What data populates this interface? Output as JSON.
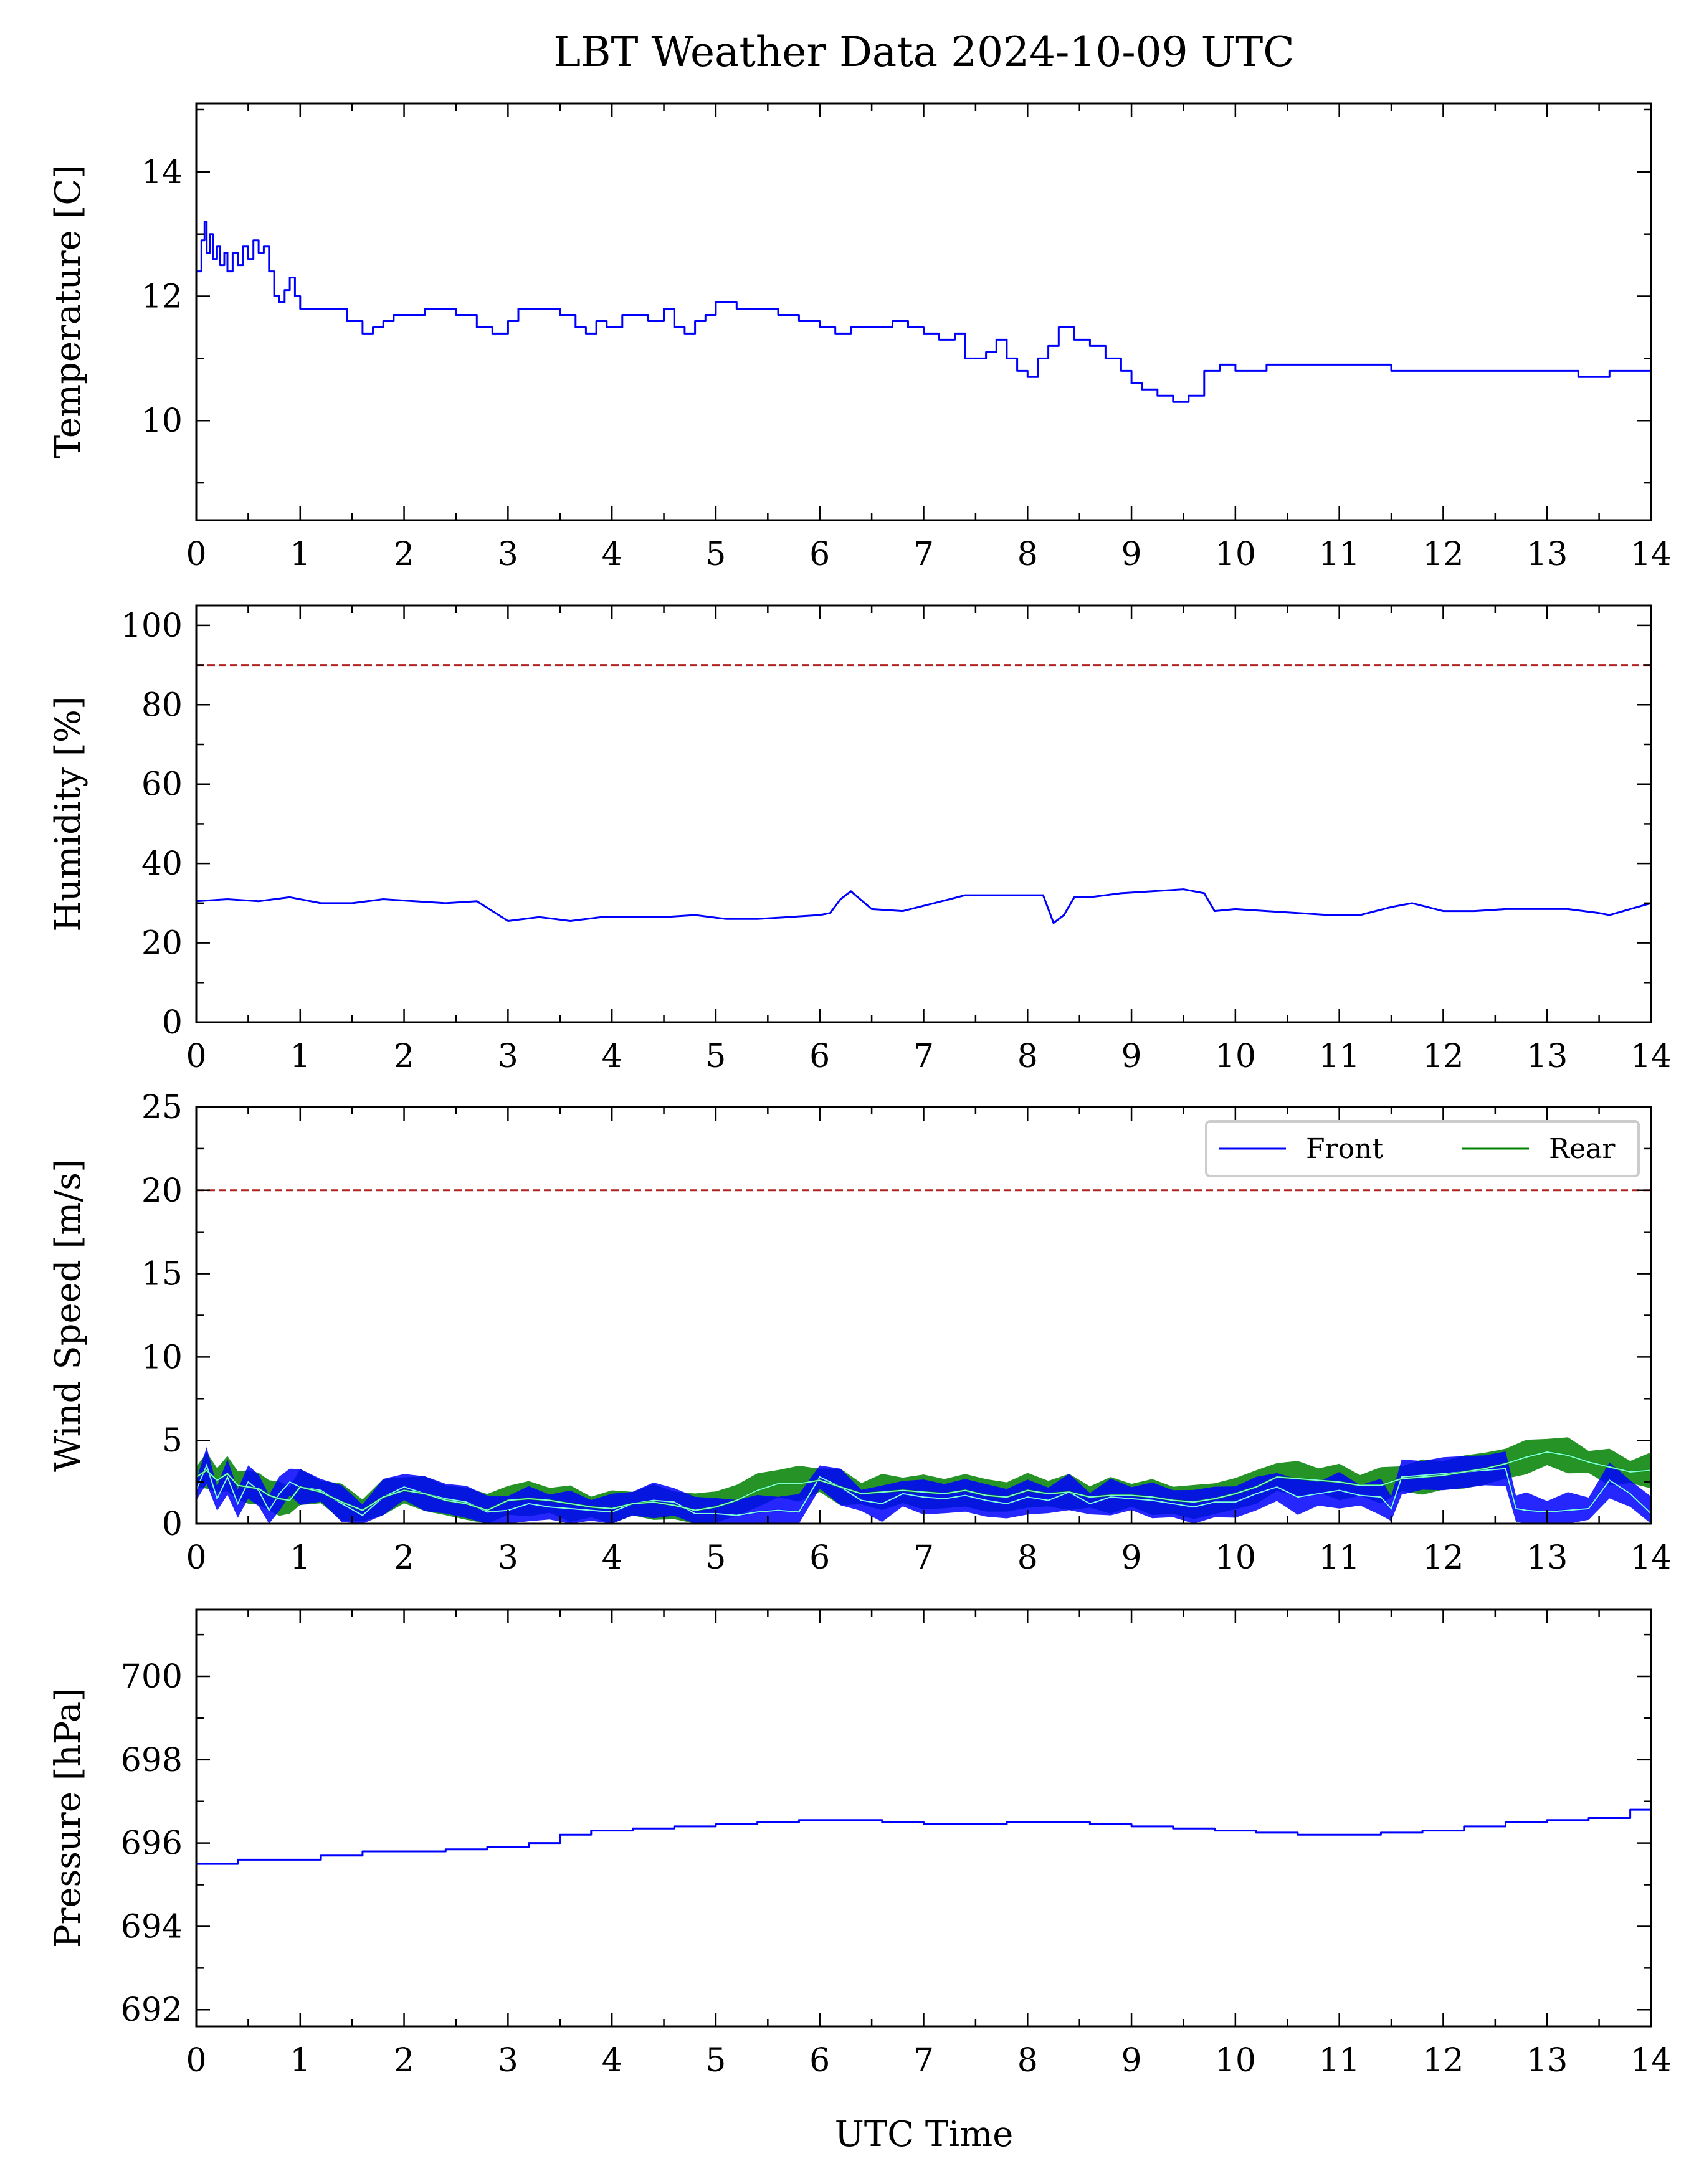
{
  "figure": {
    "title": "LBT Weather Data 2024-10-09 UTC",
    "xlabel": "UTC Time",
    "colors": {
      "front": "#0000ff",
      "rear": "#008000",
      "threshold": "#b22222",
      "smooth": "#7fffd4"
    }
  },
  "chart_data": [
    {
      "type": "line",
      "id": "temperature",
      "ylabel": "Temperature [C]",
      "xlim": [
        0,
        14
      ],
      "ylim": [
        8.4,
        15.1
      ],
      "xticks": [
        "0",
        "1",
        "2",
        "3",
        "4",
        "5",
        "6",
        "7",
        "8",
        "9",
        "10",
        "11",
        "12",
        "13",
        "14"
      ],
      "yticks": [
        {
          "v": 10,
          "label": "10"
        },
        {
          "v": 12,
          "label": "12"
        },
        {
          "v": 14,
          "label": "14"
        }
      ],
      "series": [
        {
          "key": "front",
          "color": "#0000ff",
          "step": true,
          "x": [
            0,
            0.05,
            0.08,
            0.1,
            0.13,
            0.16,
            0.2,
            0.23,
            0.27,
            0.3,
            0.35,
            0.4,
            0.45,
            0.5,
            0.55,
            0.6,
            0.65,
            0.7,
            0.75,
            0.8,
            0.85,
            0.9,
            0.95,
            1.0,
            1.1,
            1.3,
            1.45,
            1.6,
            1.7,
            1.8,
            1.9,
            2.0,
            2.2,
            2.5,
            2.7,
            2.85,
            3.0,
            3.1,
            3.3,
            3.5,
            3.65,
            3.75,
            3.85,
            3.95,
            4.1,
            4.2,
            4.35,
            4.5,
            4.6,
            4.7,
            4.8,
            4.9,
            5.0,
            5.2,
            5.4,
            5.6,
            5.8,
            6.0,
            6.15,
            6.3,
            6.5,
            6.7,
            6.85,
            7.0,
            7.15,
            7.3,
            7.4,
            7.5,
            7.6,
            7.7,
            7.8,
            7.9,
            8.0,
            8.1,
            8.2,
            8.3,
            8.45,
            8.6,
            8.75,
            8.9,
            9.0,
            9.1,
            9.25,
            9.4,
            9.55,
            9.7,
            9.85,
            10.0,
            10.3,
            10.6,
            11.0,
            11.5,
            12.0,
            12.5,
            13.0,
            13.3,
            13.6,
            13.9,
            14.0
          ],
          "y": [
            12.4,
            12.9,
            13.2,
            12.7,
            13.0,
            12.6,
            12.8,
            12.5,
            12.7,
            12.4,
            12.7,
            12.5,
            12.8,
            12.6,
            12.9,
            12.7,
            12.8,
            12.4,
            12.0,
            11.9,
            12.1,
            12.3,
            12.0,
            11.8,
            11.8,
            11.8,
            11.6,
            11.4,
            11.5,
            11.6,
            11.7,
            11.7,
            11.8,
            11.7,
            11.5,
            11.4,
            11.6,
            11.8,
            11.8,
            11.7,
            11.5,
            11.4,
            11.6,
            11.5,
            11.7,
            11.7,
            11.6,
            11.8,
            11.5,
            11.4,
            11.6,
            11.7,
            11.9,
            11.8,
            11.8,
            11.7,
            11.6,
            11.5,
            11.4,
            11.5,
            11.5,
            11.6,
            11.5,
            11.4,
            11.3,
            11.4,
            11.0,
            11.0,
            11.1,
            11.3,
            11.0,
            10.8,
            10.7,
            11.0,
            11.2,
            11.5,
            11.3,
            11.2,
            11.0,
            10.8,
            10.6,
            10.5,
            10.4,
            10.3,
            10.4,
            10.8,
            10.9,
            10.8,
            10.9,
            10.9,
            10.9,
            10.8,
            10.8,
            10.8,
            10.8,
            10.7,
            10.8,
            10.8,
            10.7
          ]
        }
      ],
      "threshold": null
    },
    {
      "type": "line",
      "id": "humidity",
      "ylabel": "Humidity [%]",
      "xlim": [
        0,
        14
      ],
      "ylim": [
        0,
        105
      ],
      "xticks": [
        "0",
        "1",
        "2",
        "3",
        "4",
        "5",
        "6",
        "7",
        "8",
        "9",
        "10",
        "11",
        "12",
        "13",
        "14"
      ],
      "yticks": [
        {
          "v": 0,
          "label": "0"
        },
        {
          "v": 20,
          "label": "20"
        },
        {
          "v": 40,
          "label": "40"
        },
        {
          "v": 60,
          "label": "60"
        },
        {
          "v": 80,
          "label": "80"
        },
        {
          "v": 100,
          "label": "100"
        }
      ],
      "series": [
        {
          "key": "front",
          "color": "#0000ff",
          "step": false,
          "x": [
            0,
            0.3,
            0.6,
            0.9,
            1.2,
            1.5,
            1.8,
            2.1,
            2.4,
            2.7,
            2.85,
            3.0,
            3.3,
            3.6,
            3.9,
            4.2,
            4.5,
            4.8,
            5.1,
            5.4,
            5.7,
            6.0,
            6.1,
            6.2,
            6.3,
            6.5,
            6.8,
            7.1,
            7.4,
            7.7,
            8.0,
            8.15,
            8.25,
            8.35,
            8.45,
            8.6,
            8.9,
            9.2,
            9.5,
            9.7,
            9.8,
            10.0,
            10.3,
            10.6,
            10.9,
            11.2,
            11.5,
            11.7,
            12.0,
            12.3,
            12.6,
            12.9,
            13.2,
            13.5,
            13.6,
            13.8,
            14.0
          ],
          "y": [
            30.5,
            31,
            30.5,
            31.5,
            30,
            30,
            31,
            30.5,
            30,
            30.5,
            28,
            25.5,
            26.5,
            25.5,
            26.5,
            26.5,
            26.5,
            27,
            26,
            26,
            26.5,
            27,
            27.5,
            31,
            33,
            28.5,
            28,
            30,
            32,
            32,
            32,
            32,
            25,
            27,
            31.5,
            31.5,
            32.5,
            33,
            33.5,
            32.5,
            28,
            28.5,
            28,
            27.5,
            27,
            27,
            29,
            30,
            28,
            28,
            28.5,
            28.5,
            28.5,
            27.5,
            27,
            28.5,
            30
          ]
        }
      ],
      "threshold": 90
    },
    {
      "type": "line",
      "id": "wind",
      "ylabel": "Wind Speed [m/s]",
      "xlim": [
        0,
        14
      ],
      "ylim": [
        0,
        25
      ],
      "xticks": [
        "0",
        "1",
        "2",
        "3",
        "4",
        "5",
        "6",
        "7",
        "8",
        "9",
        "10",
        "11",
        "12",
        "13",
        "14"
      ],
      "yticks": [
        {
          "v": 0,
          "label": "0"
        },
        {
          "v": 5,
          "label": "5"
        },
        {
          "v": 10,
          "label": "10"
        },
        {
          "v": 15,
          "label": "15"
        },
        {
          "v": 20,
          "label": "20"
        },
        {
          "v": 25,
          "label": "25"
        }
      ],
      "series": [
        {
          "key": "front",
          "name": "Front",
          "color": "#0000ff",
          "step": false,
          "x": [
            0,
            0.1,
            0.2,
            0.3,
            0.4,
            0.5,
            0.6,
            0.7,
            0.8,
            0.9,
            1.0,
            1.2,
            1.4,
            1.6,
            1.8,
            2.0,
            2.2,
            2.4,
            2.6,
            2.8,
            3.0,
            3.2,
            3.4,
            3.6,
            3.8,
            4.0,
            4.2,
            4.4,
            4.6,
            4.8,
            5.0,
            5.2,
            5.4,
            5.6,
            5.8,
            6.0,
            6.2,
            6.4,
            6.6,
            6.8,
            7.0,
            7.2,
            7.4,
            7.6,
            7.8,
            8.0,
            8.2,
            8.4,
            8.6,
            8.8,
            9.0,
            9.2,
            9.4,
            9.6,
            9.8,
            10.0,
            10.2,
            10.4,
            10.6,
            10.8,
            11.0,
            11.2,
            11.4,
            11.5,
            11.6,
            11.8,
            12.0,
            12.2,
            12.4,
            12.6,
            12.7,
            12.8,
            13.0,
            13.2,
            13.4,
            13.6,
            13.8,
            14.0
          ],
          "y": [
            2.0,
            3.5,
            1.5,
            2.8,
            1.2,
            2.5,
            2.0,
            0.8,
            1.8,
            2.5,
            2.2,
            2.0,
            1.2,
            0.5,
            1.6,
            2.2,
            1.8,
            1.5,
            1.3,
            0.7,
            0.8,
            1.2,
            1.0,
            0.9,
            0.8,
            0.7,
            1.2,
            1.4,
            1.3,
            0.6,
            0.6,
            0.5,
            0.7,
            0.8,
            0.7,
            2.8,
            2.2,
            1.4,
            1.2,
            1.8,
            1.6,
            1.5,
            1.7,
            1.4,
            1.2,
            1.6,
            1.4,
            1.9,
            1.2,
            1.6,
            1.5,
            1.4,
            1.2,
            1.0,
            1.3,
            1.3,
            1.8,
            2.2,
            1.6,
            1.8,
            2.0,
            1.7,
            1.6,
            0.9,
            2.8,
            2.9,
            3.0,
            3.1,
            3.2,
            3.3,
            0.9,
            0.8,
            0.7,
            0.8,
            0.9,
            2.6,
            1.8,
            0.6
          ]
        },
        {
          "key": "rear",
          "name": "Rear",
          "color": "#008000",
          "step": false,
          "x": [
            0,
            0.1,
            0.2,
            0.3,
            0.4,
            0.5,
            0.6,
            0.7,
            0.8,
            0.9,
            1.0,
            1.2,
            1.4,
            1.6,
            1.8,
            2.0,
            2.2,
            2.4,
            2.6,
            2.8,
            3.0,
            3.2,
            3.4,
            3.6,
            3.8,
            4.0,
            4.2,
            4.4,
            4.6,
            4.8,
            5.0,
            5.2,
            5.4,
            5.6,
            5.8,
            6.0,
            6.2,
            6.4,
            6.6,
            6.8,
            7.0,
            7.2,
            7.4,
            7.6,
            7.8,
            8.0,
            8.2,
            8.4,
            8.6,
            8.8,
            9.0,
            9.2,
            9.4,
            9.6,
            9.8,
            10.0,
            10.2,
            10.4,
            10.6,
            10.8,
            11.0,
            11.2,
            11.4,
            11.6,
            11.8,
            12.0,
            12.2,
            12.4,
            12.6,
            12.8,
            13.0,
            13.2,
            13.4,
            13.6,
            13.8,
            14.0
          ],
          "y": [
            2.8,
            3.2,
            2.6,
            3.0,
            2.3,
            2.2,
            2.1,
            1.7,
            1.5,
            1.4,
            2.2,
            1.9,
            1.3,
            0.8,
            1.6,
            2.0,
            1.8,
            1.4,
            1.2,
            0.8,
            1.4,
            1.5,
            1.4,
            1.2,
            1.0,
            0.9,
            1.2,
            1.3,
            1.1,
            0.8,
            1.0,
            1.4,
            2.0,
            2.4,
            2.4,
            2.6,
            2.2,
            1.8,
            1.9,
            2.0,
            1.9,
            1.8,
            2.0,
            1.7,
            1.6,
            2.0,
            1.8,
            1.9,
            1.6,
            1.7,
            1.7,
            1.6,
            1.4,
            1.3,
            1.5,
            1.8,
            2.2,
            2.8,
            2.7,
            2.6,
            2.5,
            2.3,
            2.3,
            2.7,
            2.8,
            2.9,
            3.1,
            3.3,
            3.6,
            4.0,
            4.3,
            4.1,
            3.7,
            3.4,
            3.1,
            3.2
          ]
        }
      ],
      "threshold": 20,
      "legend": {
        "position": "upper right",
        "entries": [
          "Front",
          "Rear"
        ]
      }
    },
    {
      "type": "line",
      "id": "pressure",
      "ylabel": "Pressure [hPa]",
      "xlim": [
        0,
        14
      ],
      "ylim": [
        691.6,
        701.6
      ],
      "xticks": [
        "0",
        "1",
        "2",
        "3",
        "4",
        "5",
        "6",
        "7",
        "8",
        "9",
        "10",
        "11",
        "12",
        "13",
        "14"
      ],
      "yticks": [
        {
          "v": 692,
          "label": "692"
        },
        {
          "v": 694,
          "label": "694"
        },
        {
          "v": 696,
          "label": "696"
        },
        {
          "v": 698,
          "label": "698"
        },
        {
          "v": 700,
          "label": "700"
        }
      ],
      "series": [
        {
          "key": "front",
          "color": "#0000ff",
          "step": true,
          "x": [
            0,
            0.4,
            0.8,
            1.2,
            1.6,
            2.0,
            2.4,
            2.8,
            3.2,
            3.5,
            3.8,
            4.2,
            4.6,
            5.0,
            5.4,
            5.8,
            6.2,
            6.6,
            7.0,
            7.4,
            7.8,
            8.2,
            8.6,
            9.0,
            9.4,
            9.8,
            10.2,
            10.6,
            11.0,
            11.4,
            11.8,
            12.2,
            12.6,
            13.0,
            13.4,
            13.8,
            14.0
          ],
          "y": [
            695.5,
            695.6,
            695.6,
            695.7,
            695.8,
            695.8,
            695.85,
            695.9,
            696.0,
            696.2,
            696.3,
            696.35,
            696.4,
            696.45,
            696.5,
            696.55,
            696.55,
            696.5,
            696.45,
            696.45,
            696.5,
            696.5,
            696.45,
            696.4,
            696.35,
            696.3,
            696.25,
            696.2,
            696.2,
            696.25,
            696.3,
            696.4,
            696.5,
            696.55,
            696.6,
            696.8,
            697.0
          ]
        }
      ],
      "threshold": null
    }
  ]
}
